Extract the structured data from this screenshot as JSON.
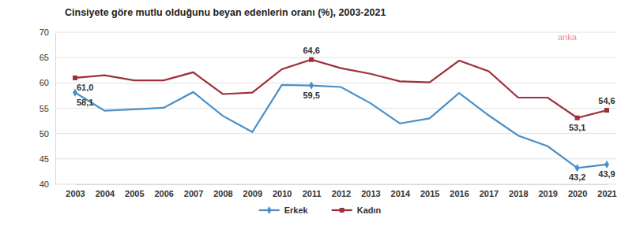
{
  "chart_data": {
    "type": "line",
    "title": "Cinsiyete göre mutlu olduğunu beyan edenlerin oranı (%), 2003-2021",
    "annotations": [
      "anka"
    ],
    "categories": [
      "2003",
      "2004",
      "2005",
      "2006",
      "2007",
      "2008",
      "2009",
      "2010",
      "2011",
      "2012",
      "2013",
      "2014",
      "2015",
      "2016",
      "2017",
      "2018",
      "2019",
      "2020",
      "2021"
    ],
    "series": [
      {
        "name": "Erkek",
        "color": "#4a8fc7",
        "marker": "diamond",
        "values": [
          58.1,
          54.5,
          54.8,
          55.1,
          58.2,
          53.5,
          50.3,
          59.6,
          59.5,
          59.2,
          56.0,
          52.0,
          53.0,
          58.0,
          53.6,
          49.6,
          47.5,
          43.2,
          43.9
        ],
        "value_labels": [
          "58,1",
          null,
          null,
          null,
          null,
          null,
          null,
          null,
          "59,5",
          null,
          null,
          null,
          null,
          null,
          null,
          null,
          null,
          "43,2",
          "43,9"
        ]
      },
      {
        "name": "Kadın",
        "color": "#9e3039",
        "marker": "square",
        "values": [
          61.0,
          61.5,
          60.5,
          60.5,
          62.1,
          57.8,
          58.1,
          62.7,
          64.6,
          62.9,
          61.8,
          60.3,
          60.1,
          64.4,
          62.3,
          57.1,
          57.1,
          53.1,
          54.6
        ],
        "value_labels": [
          "61,0",
          null,
          null,
          null,
          null,
          null,
          null,
          null,
          "64,6",
          null,
          null,
          null,
          null,
          null,
          null,
          null,
          null,
          "53,1",
          "54,6"
        ]
      }
    ],
    "ylim": [
      40,
      70
    ],
    "yticks": [
      40,
      45,
      50,
      55,
      60,
      65,
      70
    ],
    "grid": true,
    "legend": "bottom"
  }
}
